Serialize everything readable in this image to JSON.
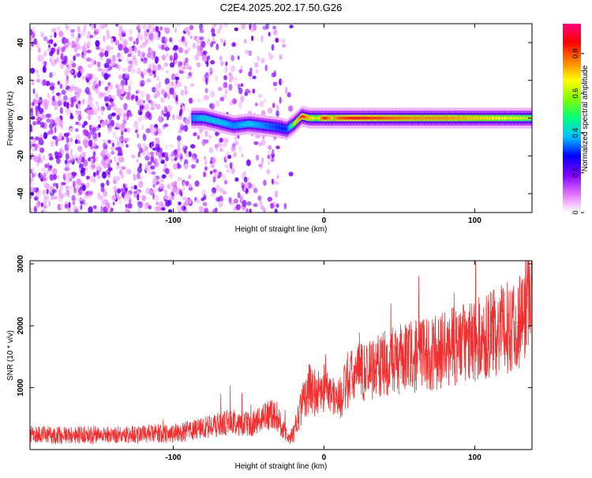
{
  "title": "C2E4.2025.202.17.50.G26",
  "chart_data": [
    {
      "type": "heatmap",
      "xlabel": "Height of straight line (km)",
      "ylabel": "Frequency (Hz)",
      "xlim": [
        -195,
        138
      ],
      "ylim": [
        -50,
        50
      ],
      "xticks": [
        -100,
        0,
        100
      ],
      "yticks": [
        -40,
        -20,
        0,
        20,
        40
      ],
      "colorbar": {
        "label": "Normalized spectral amplitude",
        "range": [
          0,
          0.95
        ],
        "ticks": [
          0,
          0.2,
          0.4,
          0.6,
          0.8
        ],
        "colors": [
          "#ffffff",
          "#e070ff",
          "#7f00ff",
          "#0000ff",
          "#00c0ff",
          "#00ff7f",
          "#80ff00",
          "#ffff00",
          "#ff8000",
          "#ff0000",
          "#ff0080"
        ]
      },
      "noise_region": {
        "x_range": [
          -195,
          -20
        ],
        "freq_range": [
          -50,
          50
        ]
      },
      "signal_track": {
        "description_free": true,
        "x": [
          -88,
          -80,
          -70,
          -60,
          -50,
          -40,
          -30,
          -25,
          -20,
          -15,
          -10,
          -5,
          0,
          5,
          10,
          20,
          40,
          60,
          80,
          100,
          120,
          138
        ],
        "frequency": [
          0,
          0,
          -2,
          -4,
          -3,
          -4,
          -5,
          -6,
          -3,
          1,
          0,
          0,
          0,
          0,
          0,
          0,
          0,
          0,
          0,
          0,
          0,
          0
        ],
        "amplitude": [
          0.35,
          0.4,
          0.4,
          0.35,
          0.4,
          0.35,
          0.3,
          0.3,
          0.6,
          0.85,
          0.7,
          0.6,
          0.85,
          0.7,
          0.8,
          0.85,
          0.8,
          0.75,
          0.75,
          0.7,
          0.65,
          0.6
        ]
      },
      "grid": false
    },
    {
      "type": "line",
      "xlabel": "Height of straight line (km)",
      "ylabel": "SNR (10 * v/v)",
      "xlim": [
        -195,
        138
      ],
      "ylim": [
        0,
        3050
      ],
      "xticks": [
        -100,
        0,
        100
      ],
      "yticks": [
        1000,
        2000,
        3000
      ],
      "color": "#f03030",
      "series": [
        {
          "x": [
            -195,
            -180,
            -160,
            -140,
            -120,
            -100,
            -90,
            -80,
            -70,
            -60,
            -50,
            -45,
            -40,
            -35,
            -30,
            -27,
            -25,
            -22,
            -20,
            -18,
            -15,
            -12,
            -10,
            -8,
            -5,
            0,
            5,
            10,
            15,
            20,
            30,
            40,
            50,
            60,
            70,
            80,
            90,
            100,
            110,
            120,
            128,
            132,
            135,
            138
          ],
          "y": [
            250,
            230,
            240,
            240,
            250,
            260,
            300,
            350,
            400,
            450,
            400,
            450,
            500,
            600,
            500,
            300,
            250,
            200,
            250,
            450,
            700,
            900,
            1000,
            950,
            900,
            1000,
            900,
            800,
            1050,
            1200,
            1300,
            1400,
            1450,
            1500,
            1550,
            1600,
            1700,
            1750,
            1850,
            1950,
            2050,
            2150,
            2500,
            2900
          ]
        }
      ],
      "grid": false
    }
  ]
}
